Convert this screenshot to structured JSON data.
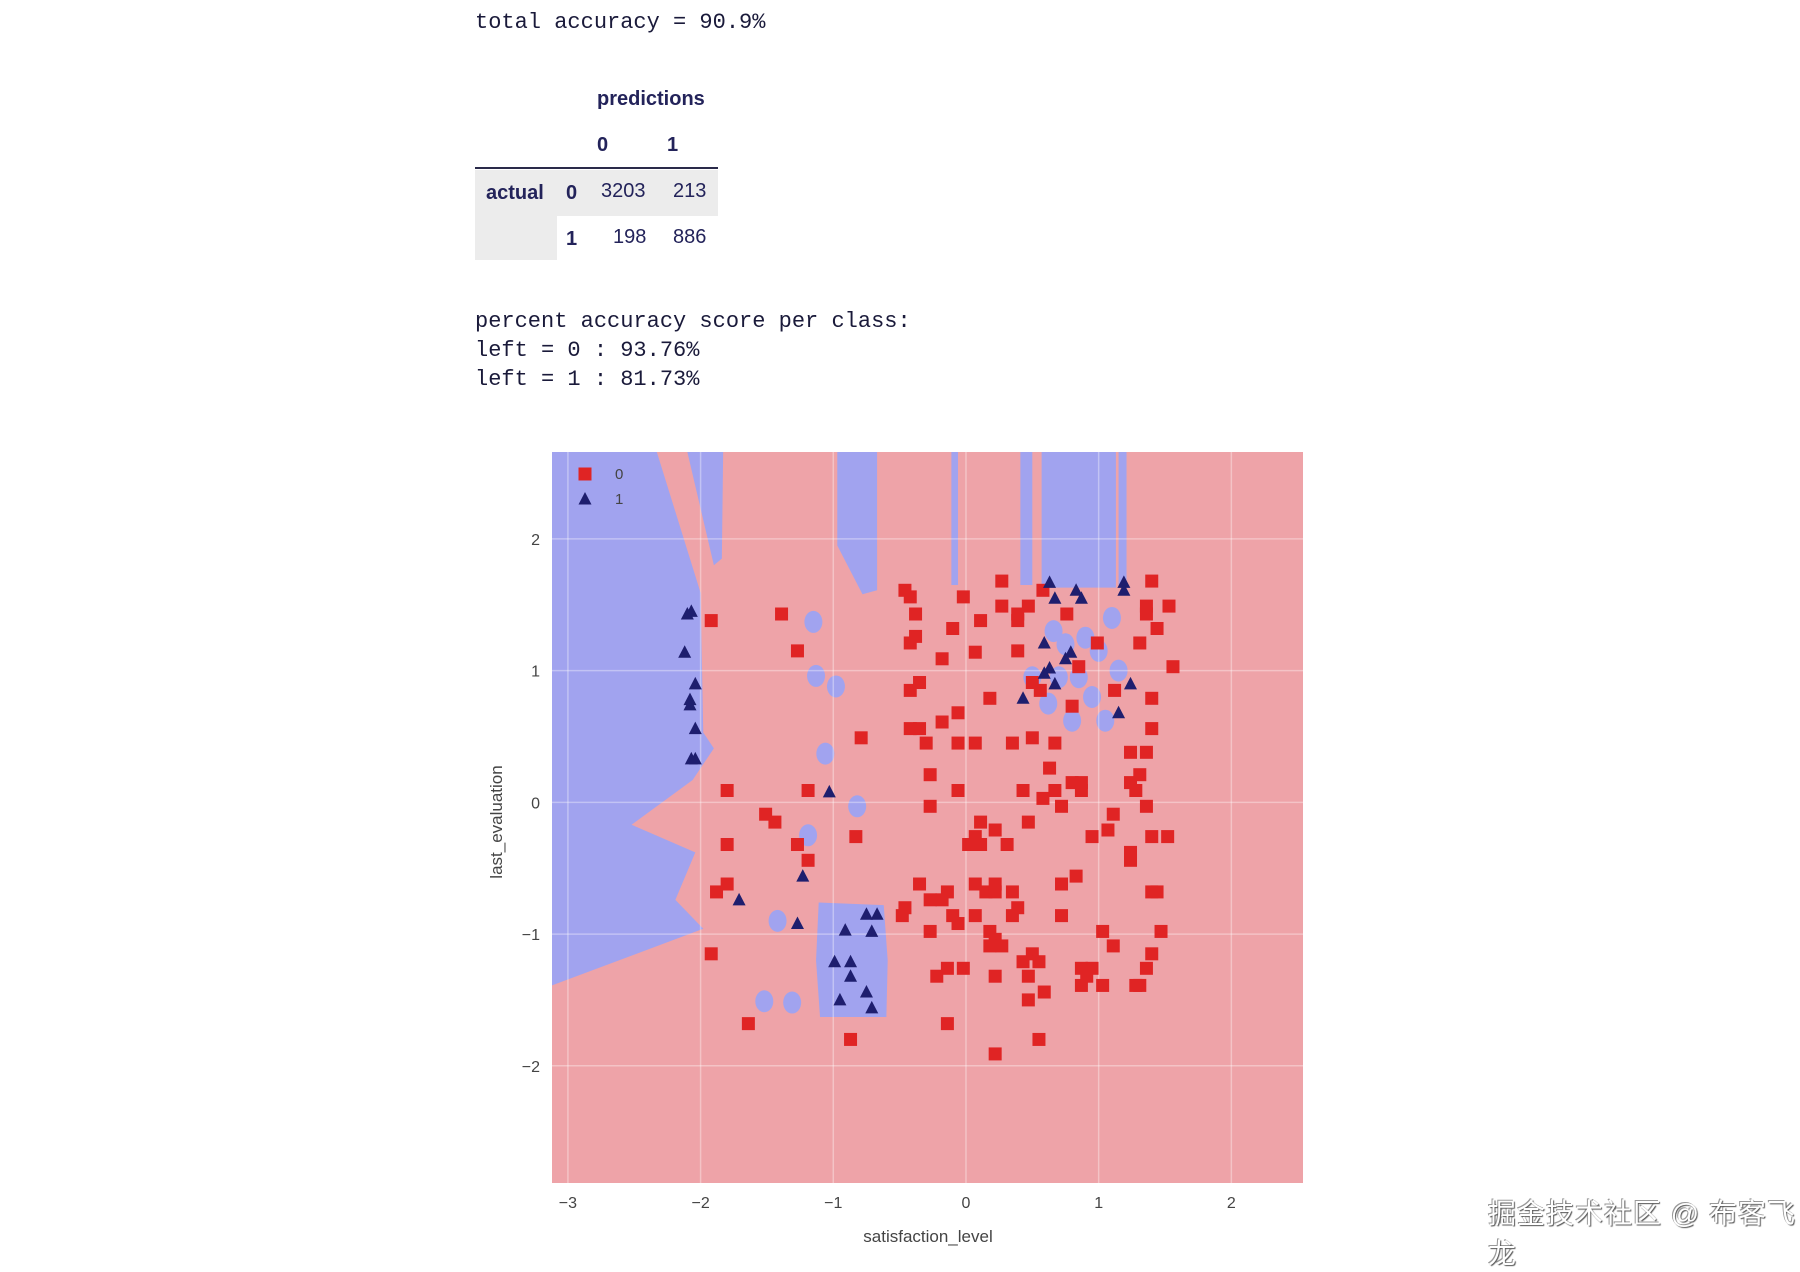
{
  "header": {
    "total_accuracy": "total accuracy = 90.9%"
  },
  "confusion_matrix": {
    "predictions_label": "predictions",
    "actual_label": "actual",
    "columns": [
      "0",
      "1"
    ],
    "rows": [
      {
        "label": "0",
        "values": [
          "3203",
          "213"
        ]
      },
      {
        "label": "1",
        "values": [
          "198",
          "886"
        ]
      }
    ]
  },
  "per_class": {
    "title": "percent accuracy score per class:",
    "lines": [
      "left = 0 : 93.76%",
      "left = 1 : 81.73%"
    ]
  },
  "watermark": "掘金技术社区 @ 布客飞龙",
  "chart_data": {
    "type": "scatter",
    "xlabel": "satisfaction_level",
    "ylabel": "last_evaluation",
    "xlim": [
      -3.12,
      2.54
    ],
    "ylim": [
      -2.89,
      2.66
    ],
    "xticks": [
      -3,
      -2,
      -1,
      0,
      1,
      2
    ],
    "yticks": [
      -2,
      -1,
      0,
      1,
      2
    ],
    "grid": true,
    "legend_position": "top-left",
    "colors": {
      "region_0": "#eea3a8",
      "region_1": "#a1a3ef",
      "class_0": "#e02424",
      "class_1": "#1e1e6e"
    },
    "regions_class_1": [
      [
        [
          -3.12,
          2.66
        ],
        [
          -2.33,
          2.66
        ],
        [
          -2.0,
          1.59
        ],
        [
          -1.98,
          0.53
        ],
        [
          -1.9,
          0.41
        ],
        [
          -2.06,
          0.17
        ],
        [
          -2.52,
          -0.17
        ],
        [
          -2.04,
          -0.38
        ],
        [
          -2.19,
          -0.74
        ],
        [
          -1.98,
          -0.96
        ],
        [
          -3.12,
          -1.39
        ]
      ],
      [
        [
          -2.1,
          2.66
        ],
        [
          -1.83,
          2.66
        ],
        [
          -1.84,
          1.85
        ],
        [
          -1.9,
          1.8
        ]
      ],
      [
        [
          -0.97,
          2.66
        ],
        [
          -0.67,
          2.66
        ],
        [
          -0.67,
          1.61
        ],
        [
          -0.78,
          1.58
        ],
        [
          -0.97,
          1.95
        ]
      ],
      [
        [
          -0.11,
          2.66
        ],
        [
          -0.06,
          2.66
        ],
        [
          -0.06,
          1.65
        ],
        [
          -0.11,
          1.65
        ]
      ],
      [
        [
          0.41,
          2.66
        ],
        [
          0.5,
          2.66
        ],
        [
          0.5,
          1.65
        ],
        [
          0.41,
          1.65
        ]
      ],
      [
        [
          0.57,
          2.66
        ],
        [
          1.13,
          2.66
        ],
        [
          1.13,
          1.63
        ],
        [
          0.57,
          1.63
        ]
      ],
      [
        [
          1.15,
          2.66
        ],
        [
          1.21,
          2.66
        ],
        [
          1.21,
          1.65
        ],
        [
          1.15,
          1.65
        ]
      ],
      [
        [
          -1.11,
          -0.76
        ],
        [
          -0.62,
          -0.78
        ],
        [
          -0.59,
          -1.2
        ],
        [
          -0.6,
          -1.63
        ],
        [
          -1.1,
          -1.63
        ],
        [
          -1.13,
          -1.2
        ]
      ]
    ],
    "blobs_class_1": [
      [
        -1.15,
        1.37
      ],
      [
        -1.13,
        0.96
      ],
      [
        -0.98,
        0.88
      ],
      [
        -1.06,
        0.37
      ],
      [
        -1.42,
        -0.9
      ],
      [
        -1.52,
        -1.51
      ],
      [
        -1.31,
        -1.52
      ],
      [
        -0.82,
        -0.03
      ],
      [
        -1.19,
        -0.25
      ],
      [
        0.66,
        1.3
      ],
      [
        0.75,
        1.2
      ],
      [
        0.9,
        1.25
      ],
      [
        1.0,
        1.15
      ],
      [
        0.7,
        0.95
      ],
      [
        0.85,
        0.95
      ],
      [
        0.95,
        0.8
      ],
      [
        1.1,
        1.4
      ],
      [
        0.62,
        0.75
      ],
      [
        0.8,
        0.62
      ],
      [
        1.05,
        0.62
      ],
      [
        1.15,
        1.0
      ],
      [
        0.5,
        0.95
      ]
    ],
    "series": [
      {
        "name": "0",
        "marker": "square",
        "points": [
          [
            -1.92,
            1.38
          ],
          [
            -1.39,
            1.43
          ],
          [
            -1.27,
            1.15
          ],
          [
            -0.79,
            0.49
          ],
          [
            -1.8,
            0.09
          ],
          [
            -1.19,
            0.09
          ],
          [
            -1.51,
            -0.09
          ],
          [
            -1.44,
            -0.15
          ],
          [
            -1.8,
            -0.32
          ],
          [
            -1.27,
            -0.32
          ],
          [
            -1.19,
            -0.44
          ],
          [
            -1.8,
            -0.62
          ],
          [
            -1.88,
            -0.68
          ],
          [
            -1.92,
            -1.15
          ],
          [
            -1.64,
            -1.68
          ],
          [
            -0.87,
            -1.8
          ],
          [
            -0.83,
            -0.26
          ],
          [
            -0.46,
            1.61
          ],
          [
            -0.42,
            1.56
          ],
          [
            -0.38,
            1.43
          ],
          [
            -0.02,
            1.56
          ],
          [
            -0.1,
            1.32
          ],
          [
            0.11,
            1.38
          ],
          [
            0.27,
            1.68
          ],
          [
            0.27,
            1.49
          ],
          [
            0.39,
            1.43
          ],
          [
            0.39,
            1.38
          ],
          [
            0.47,
            1.49
          ],
          [
            0.58,
            1.61
          ],
          [
            0.76,
            1.43
          ],
          [
            0.99,
            1.21
          ],
          [
            1.31,
            1.21
          ],
          [
            1.36,
            1.49
          ],
          [
            1.36,
            1.43
          ],
          [
            1.4,
            1.68
          ],
          [
            1.53,
            1.49
          ],
          [
            1.44,
            1.32
          ],
          [
            1.56,
            1.03
          ],
          [
            -0.38,
            1.26
          ],
          [
            -0.42,
            1.21
          ],
          [
            -0.18,
            1.09
          ],
          [
            0.07,
            1.14
          ],
          [
            0.39,
            1.15
          ],
          [
            0.85,
            1.03
          ],
          [
            0.5,
            0.91
          ],
          [
            0.56,
            0.85
          ],
          [
            1.12,
            0.85
          ],
          [
            1.4,
            0.79
          ],
          [
            0.18,
            0.79
          ],
          [
            0.8,
            0.73
          ],
          [
            -0.42,
            0.85
          ],
          [
            -0.35,
            0.91
          ],
          [
            -0.18,
            0.61
          ],
          [
            -0.06,
            0.68
          ],
          [
            -0.42,
            0.56
          ],
          [
            -0.35,
            0.56
          ],
          [
            -0.3,
            0.45
          ],
          [
            -0.06,
            0.45
          ],
          [
            0.07,
            0.45
          ],
          [
            0.35,
            0.45
          ],
          [
            0.5,
            0.49
          ],
          [
            0.67,
            0.45
          ],
          [
            1.4,
            0.56
          ],
          [
            1.24,
            0.38
          ],
          [
            1.36,
            0.38
          ],
          [
            0.63,
            0.26
          ],
          [
            -0.27,
            0.21
          ],
          [
            1.31,
            0.21
          ],
          [
            -0.06,
            0.09
          ],
          [
            0.43,
            0.09
          ],
          [
            0.58,
            0.03
          ],
          [
            0.67,
            0.09
          ],
          [
            0.8,
            0.15
          ],
          [
            0.87,
            0.15
          ],
          [
            0.87,
            0.09
          ],
          [
            1.24,
            0.15
          ],
          [
            1.28,
            0.09
          ],
          [
            1.36,
            -0.03
          ],
          [
            -0.27,
            -0.03
          ],
          [
            0.72,
            -0.03
          ],
          [
            0.11,
            -0.15
          ],
          [
            0.47,
            -0.15
          ],
          [
            0.22,
            -0.21
          ],
          [
            1.11,
            -0.09
          ],
          [
            1.07,
            -0.21
          ],
          [
            0.95,
            -0.26
          ],
          [
            1.4,
            -0.26
          ],
          [
            1.52,
            -0.26
          ],
          [
            1.24,
            -0.38
          ],
          [
            1.24,
            -0.44
          ],
          [
            0.02,
            -0.32
          ],
          [
            0.07,
            -0.26
          ],
          [
            0.11,
            -0.32
          ],
          [
            0.31,
            -0.32
          ],
          [
            -0.35,
            -0.62
          ],
          [
            -0.27,
            -0.74
          ],
          [
            -0.18,
            -0.74
          ],
          [
            -0.14,
            -0.68
          ],
          [
            0.07,
            -0.62
          ],
          [
            0.15,
            -0.68
          ],
          [
            0.22,
            -0.62
          ],
          [
            0.22,
            -0.68
          ],
          [
            0.35,
            -0.68
          ],
          [
            0.39,
            -0.8
          ],
          [
            0.35,
            -0.86
          ],
          [
            0.72,
            -0.62
          ],
          [
            0.83,
            -0.56
          ],
          [
            1.4,
            -0.68
          ],
          [
            1.44,
            -0.68
          ],
          [
            0.72,
            -0.86
          ],
          [
            -0.48,
            -0.86
          ],
          [
            -0.46,
            -0.8
          ],
          [
            -0.1,
            -0.86
          ],
          [
            -0.06,
            -0.92
          ],
          [
            0.07,
            -0.86
          ],
          [
            -0.27,
            -0.98
          ],
          [
            0.18,
            -0.98
          ],
          [
            0.22,
            -1.04
          ],
          [
            0.27,
            -1.09
          ],
          [
            1.03,
            -0.98
          ],
          [
            1.11,
            -1.09
          ],
          [
            1.47,
            -0.98
          ],
          [
            1.4,
            -1.15
          ],
          [
            0.18,
            -1.09
          ],
          [
            0.43,
            -1.21
          ],
          [
            0.5,
            -1.15
          ],
          [
            0.55,
            -1.21
          ],
          [
            -0.14,
            -1.26
          ],
          [
            -0.02,
            -1.26
          ],
          [
            -0.22,
            -1.32
          ],
          [
            0.22,
            -1.32
          ],
          [
            0.47,
            -1.32
          ],
          [
            0.87,
            -1.26
          ],
          [
            0.95,
            -1.26
          ],
          [
            0.91,
            -1.32
          ],
          [
            0.87,
            -1.39
          ],
          [
            1.03,
            -1.39
          ],
          [
            1.36,
            -1.26
          ],
          [
            1.28,
            -1.39
          ],
          [
            1.31,
            -1.39
          ],
          [
            0.59,
            -1.44
          ],
          [
            0.47,
            -1.5
          ],
          [
            -0.14,
            -1.68
          ],
          [
            0.55,
            -1.8
          ],
          [
            0.22,
            -1.91
          ]
        ]
      },
      {
        "name": "1",
        "marker": "triangle",
        "points": [
          [
            -2.07,
            1.45
          ],
          [
            -2.1,
            1.43
          ],
          [
            -2.12,
            1.14
          ],
          [
            -2.04,
            0.9
          ],
          [
            -2.08,
            0.78
          ],
          [
            -2.08,
            0.74
          ],
          [
            -2.04,
            0.56
          ],
          [
            -2.07,
            0.33
          ],
          [
            -2.04,
            0.33
          ],
          [
            -1.03,
            0.08
          ],
          [
            -1.23,
            -0.56
          ],
          [
            -1.71,
            -0.74
          ],
          [
            -1.27,
            -0.92
          ],
          [
            -0.91,
            -0.97
          ],
          [
            -0.75,
            -0.85
          ],
          [
            -0.67,
            -0.85
          ],
          [
            -0.71,
            -0.98
          ],
          [
            -0.99,
            -1.21
          ],
          [
            -0.87,
            -1.21
          ],
          [
            -0.87,
            -1.32
          ],
          [
            -0.75,
            -1.44
          ],
          [
            -0.95,
            -1.5
          ],
          [
            -0.71,
            -1.56
          ],
          [
            0.63,
            1.67
          ],
          [
            0.67,
            1.55
          ],
          [
            0.83,
            1.61
          ],
          [
            0.87,
            1.55
          ],
          [
            1.19,
            1.67
          ],
          [
            1.19,
            1.61
          ],
          [
            0.59,
            1.21
          ],
          [
            0.79,
            1.14
          ],
          [
            0.75,
            1.09
          ],
          [
            0.63,
            1.02
          ],
          [
            0.59,
            0.98
          ],
          [
            0.67,
            0.9
          ],
          [
            0.43,
            0.79
          ],
          [
            1.24,
            0.9
          ],
          [
            1.15,
            0.68
          ]
        ]
      }
    ]
  }
}
